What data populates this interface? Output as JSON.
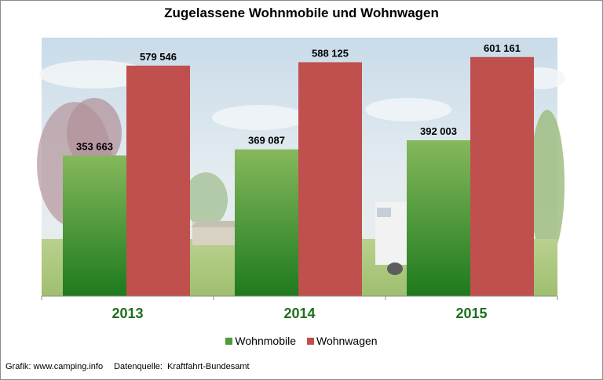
{
  "chart_data": {
    "type": "bar",
    "title": "Zugelassene Wohnmobile und Wohnwagen",
    "categories": [
      "2013",
      "2014",
      "2015"
    ],
    "series": [
      {
        "name": "Wohnmobile",
        "values": [
          353663,
          369087,
          392003
        ],
        "labels": [
          "353 663",
          "369 087",
          "392 003"
        ],
        "color": "#4f9a3a"
      },
      {
        "name": "Wohnwagen",
        "values": [
          579546,
          588125,
          601161
        ],
        "labels": [
          "579 546",
          "588 125",
          "601 161"
        ],
        "color": "#c0504d"
      }
    ],
    "ylim": [
      0,
      650000
    ],
    "grid": false,
    "legend_position": "bottom",
    "background": "photo of a campsite with caravans, trees and sky"
  },
  "footer": {
    "grafik": "Grafik: www.camping.info",
    "quelle": "Datenquelle:  Kraftfahrt-Bundesamt"
  }
}
